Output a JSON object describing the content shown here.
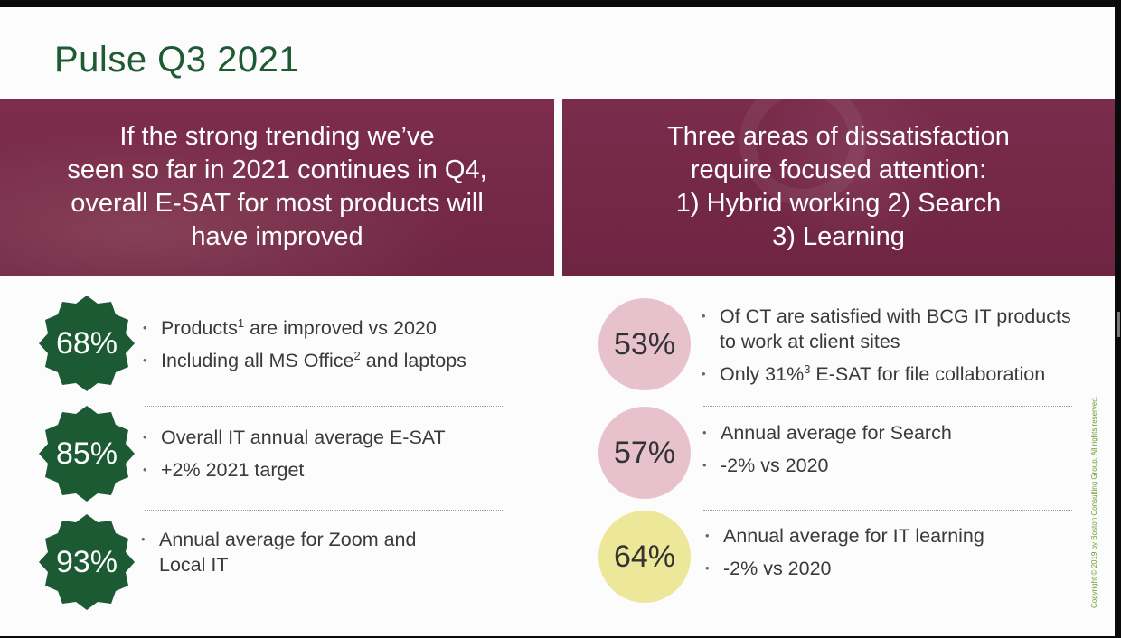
{
  "title": "Pulse Q3 2021",
  "banners": {
    "left": "If the strong trending we’ve\nseen so far in 2021 continues in Q4,\noverall E-SAT for most products will\nhave improved",
    "right": "Three areas of dissatisfaction\nrequire focused attention:\n1) Hybrid working 2) Search\n3) Learning"
  },
  "left_stats": [
    {
      "value": "68%",
      "bullets": [
        {
          "text": "Products",
          "sup": "1",
          "rest": " are improved vs 2020"
        },
        {
          "text": "Including all MS Office",
          "sup": "2",
          "rest": " and laptops"
        }
      ]
    },
    {
      "value": "85%",
      "bullets": [
        {
          "text": "Overall IT annual average E-SAT"
        },
        {
          "text": "+2% 2021 target"
        }
      ]
    },
    {
      "value": "93%",
      "bullets": [
        {
          "text": "Annual average for Zoom and Local IT"
        }
      ]
    }
  ],
  "right_stats": [
    {
      "value": "53%",
      "bullets": [
        {
          "text": "Of CT are satisfied with BCG IT products to work at client sites"
        },
        {
          "text": "Only 31%",
          "sup": "3",
          "rest": " E-SAT for file collaboration"
        }
      ]
    },
    {
      "value": "57%",
      "bullets": [
        {
          "text": "Annual average for Search"
        },
        {
          "text": "-2% vs 2020"
        }
      ]
    },
    {
      "value": "64%",
      "bullets": [
        {
          "text": "Annual average for IT learning"
        },
        {
          "text": "-2% vs 2020"
        }
      ]
    }
  ],
  "copyright": "Copyright © 2019 by Boston Consulting Group. All rights reserved.",
  "colors": {
    "title_green": "#1e5a32",
    "badge_green": "#1b5a33",
    "banner_maroon": "#7a2c4b",
    "circle_pink": "#e7c2cd",
    "circle_yellow": "#ede79a"
  }
}
